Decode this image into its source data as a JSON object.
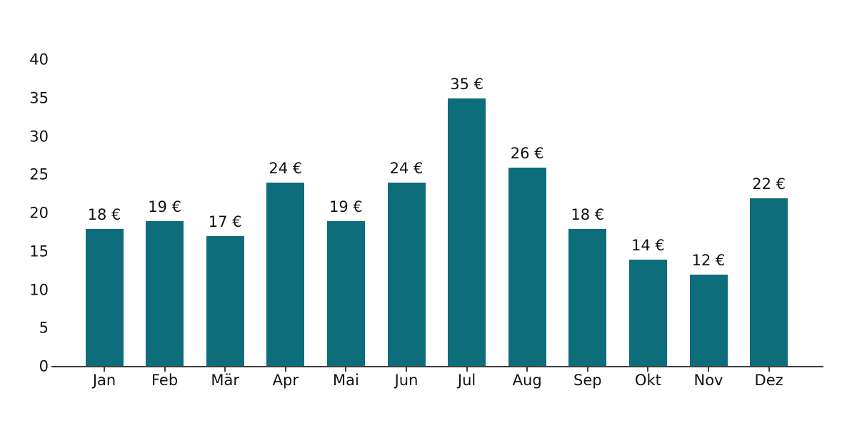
{
  "chart_data": {
    "type": "bar",
    "title": "",
    "xlabel": "",
    "ylabel": "",
    "categories": [
      "Jan",
      "Feb",
      "Mär",
      "Apr",
      "Mai",
      "Jun",
      "Jul",
      "Aug",
      "Sep",
      "Okt",
      "Nov",
      "Dez"
    ],
    "values": [
      18,
      19,
      17,
      24,
      19,
      24,
      35,
      26,
      18,
      14,
      12,
      22
    ],
    "value_labels": [
      "18 €",
      "19 €",
      "17 €",
      "24 €",
      "19 €",
      "24 €",
      "35 €",
      "26 €",
      "18 €",
      "14 €",
      "12 €",
      "22 €"
    ],
    "y_ticks": [
      0,
      5,
      10,
      15,
      20,
      25,
      30,
      35,
      40
    ],
    "ylim": [
      0,
      40
    ],
    "grid": "off",
    "legend": "none",
    "bar_color": "#0d6d7b",
    "axis_color": "#3f3f3f",
    "text_color": "#111111"
  }
}
